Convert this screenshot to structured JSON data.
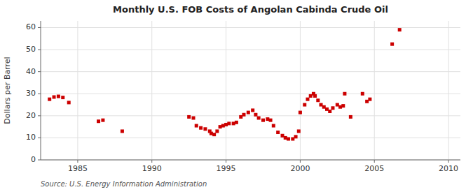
{
  "chart_data": {
    "type": "scatter",
    "title": "Monthly U.S. FOB Costs of Angolan Cabinda Crude Oil",
    "ylabel": "Dollars per Barrel",
    "annotations": [
      "Source: U.S. Energy Information Administration"
    ],
    "color": "#cc0000",
    "marker": "square",
    "grid": true,
    "xlim": [
      1982.5,
      2010.8
    ],
    "ylim": [
      0,
      63
    ],
    "xticks": [
      1985,
      1990,
      1995,
      2000,
      2005,
      2010
    ],
    "yticks": [
      0,
      10,
      20,
      30,
      40,
      50,
      60
    ],
    "x": [
      1983.1,
      1983.4,
      1983.7,
      1984.0,
      1984.4,
      1986.4,
      1986.7,
      1988.0,
      1992.5,
      1992.8,
      1993.0,
      1993.3,
      1993.6,
      1993.9,
      1994.0,
      1994.2,
      1994.4,
      1994.6,
      1994.8,
      1995.0,
      1995.2,
      1995.5,
      1995.7,
      1996.0,
      1996.2,
      1996.5,
      1996.8,
      1997.0,
      1997.2,
      1997.5,
      1997.8,
      1998.0,
      1998.2,
      1998.5,
      1998.8,
      1999.0,
      1999.2,
      1999.5,
      1999.7,
      1999.9,
      2000.0,
      2000.3,
      2000.5,
      2000.7,
      2000.9,
      2001.0,
      2001.2,
      2001.4,
      2001.6,
      2001.8,
      2002.0,
      2002.2,
      2002.5,
      2002.7,
      2002.9,
      2003.0,
      2003.4,
      2004.2,
      2004.5,
      2004.7,
      2006.2,
      2006.7
    ],
    "values": [
      27.5,
      28.5,
      28.8,
      28.3,
      26.0,
      17.5,
      18.0,
      13.0,
      19.5,
      19.0,
      15.5,
      14.5,
      14.0,
      13.0,
      12.0,
      11.5,
      13.0,
      15.0,
      15.5,
      16.0,
      16.5,
      16.5,
      17.0,
      19.5,
      20.5,
      21.5,
      22.5,
      20.5,
      19.0,
      18.0,
      18.5,
      18.0,
      15.5,
      12.5,
      11.0,
      10.0,
      9.5,
      9.5,
      10.5,
      13.0,
      21.5,
      25.0,
      27.5,
      29.0,
      30.0,
      29.0,
      27.0,
      25.0,
      24.0,
      23.0,
      22.0,
      23.5,
      25.0,
      24.0,
      24.5,
      30.0,
      19.5,
      30.0,
      26.5,
      27.5,
      52.5,
      59.0
    ]
  }
}
